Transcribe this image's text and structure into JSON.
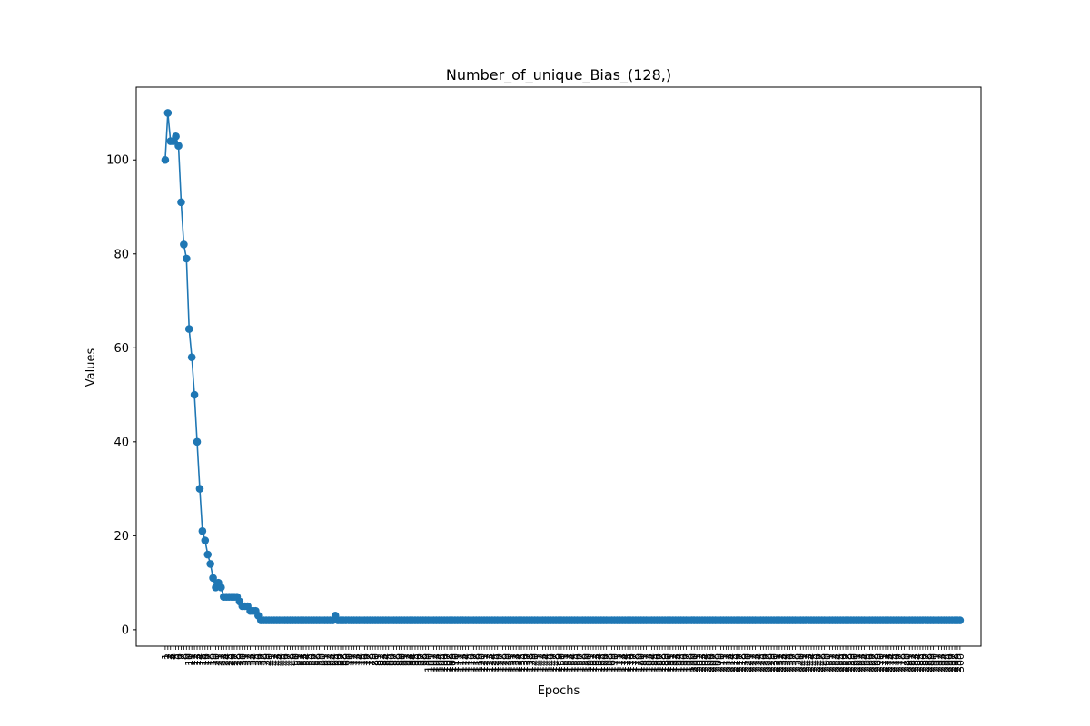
{
  "chart_data": {
    "type": "line",
    "title": "Number_of_unique_Bias_(128,)",
    "xlabel": "Epochs",
    "ylabel": "Values",
    "ylim": [
      -3.5,
      115.5
    ],
    "xlim": [
      -9.9,
      307.9
    ],
    "y_ticks": [
      0,
      20,
      40,
      60,
      80,
      100
    ],
    "x_ticks_start": 1,
    "x_ticks_end": 300,
    "x_tick_label_rotation": "vertical",
    "grid": false,
    "legend": "none",
    "marker": "circle",
    "series_color": "#1f77b4",
    "early_values": [
      100,
      110,
      104,
      104,
      105,
      103,
      91,
      82,
      79,
      64,
      58,
      50,
      40,
      30,
      21,
      19,
      16,
      14,
      11,
      9,
      10,
      9,
      7,
      7,
      7,
      7,
      7,
      7,
      6,
      5,
      5,
      5,
      4,
      4,
      4,
      3,
      2,
      2,
      2,
      2
    ],
    "later_baseline": 2,
    "later_exceptions": [
      {
        "x": 65,
        "y": 3
      }
    ],
    "n_points": 300
  }
}
